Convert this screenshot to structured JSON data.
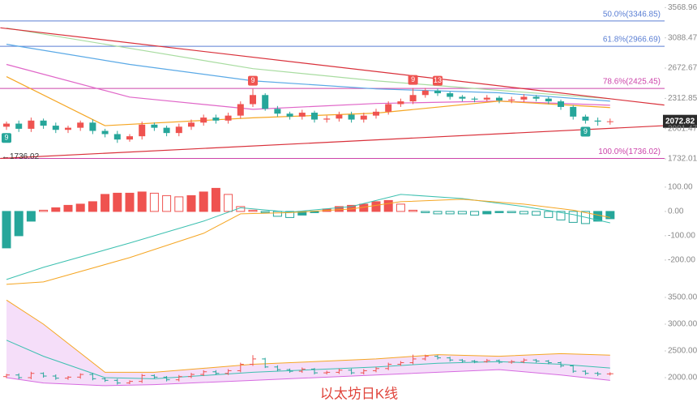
{
  "chart_data": [
    {
      "type": "candlestick",
      "log_scale": true,
      "ylim": [
        1706,
        3700
      ],
      "yticks": [
        3568.96,
        3088.47,
        2672.67,
        2312.85,
        2001.47,
        1732.01
      ],
      "up_color": "#ef5350",
      "down_color": "#26a69a",
      "open": [
        2020,
        2050,
        2000,
        2080,
        2030,
        1990,
        2010,
        2060,
        1980,
        1950,
        1900,
        1930,
        2040,
        2010,
        1960,
        2020,
        2060,
        2110,
        2080,
        2130,
        2250,
        2350,
        2200,
        2150,
        2120,
        2160,
        2090,
        2100,
        2140,
        2090,
        2130,
        2170,
        2250,
        2280,
        2350,
        2400,
        2370,
        2330,
        2310,
        2300,
        2320,
        2290,
        2300,
        2330,
        2310,
        2280,
        2220,
        2120,
        2080,
        2070
      ],
      "high": [
        2070,
        2080,
        2110,
        2100,
        2060,
        2030,
        2080,
        2090,
        2000,
        1980,
        1950,
        2070,
        2060,
        2030,
        2050,
        2090,
        2140,
        2140,
        2160,
        2280,
        2420,
        2370,
        2230,
        2170,
        2190,
        2180,
        2130,
        2170,
        2170,
        2160,
        2200,
        2280,
        2310,
        2430,
        2430,
        2420,
        2390,
        2350,
        2330,
        2350,
        2340,
        2330,
        2360,
        2350,
        2330,
        2300,
        2240,
        2140,
        2110,
        2100
      ],
      "low": [
        1990,
        1970,
        1970,
        2000,
        1960,
        1960,
        1980,
        1950,
        1920,
        1870,
        1880,
        1900,
        1980,
        1930,
        1930,
        1990,
        2030,
        2050,
        2050,
        2100,
        2220,
        2180,
        2120,
        2090,
        2090,
        2060,
        2060,
        2070,
        2060,
        2060,
        2100,
        2140,
        2220,
        2250,
        2320,
        2340,
        2300,
        2280,
        2270,
        2280,
        2260,
        2260,
        2270,
        2280,
        2250,
        2190,
        2090,
        2050,
        2030,
        2040
      ],
      "close": [
        2050,
        2000,
        2080,
        2030,
        1990,
        2010,
        2060,
        1980,
        1950,
        1900,
        1930,
        2040,
        2010,
        1960,
        2020,
        2060,
        2110,
        2080,
        2130,
        2250,
        2350,
        2200,
        2150,
        2120,
        2160,
        2090,
        2100,
        2140,
        2090,
        2130,
        2170,
        2250,
        2280,
        2350,
        2400,
        2370,
        2330,
        2310,
        2300,
        2320,
        2290,
        2300,
        2330,
        2310,
        2280,
        2220,
        2120,
        2080,
        2070,
        2073
      ],
      "levels": [
        {
          "value": 3346.85,
          "label": "50.0%(3346.85)",
          "color": "#5b7fd4"
        },
        {
          "value": 2966.69,
          "label": "61.8%(2966.69)",
          "color": "#5b7fd4"
        },
        {
          "value": 2425.45,
          "label": "78.6%(2425.45)",
          "color": "#cc44aa"
        },
        {
          "value": 1736.02,
          "label": "100.0%(1736.02)",
          "color": "#cc44aa"
        }
      ],
      "lines": [
        {
          "color": "#5aa9e6",
          "x": [
            0,
            10,
            20,
            30,
            40,
            49
          ],
          "values": [
            2995,
            2720,
            2515,
            2420,
            2375,
            2283
          ]
        },
        {
          "color": "#e066c8",
          "x": [
            0,
            10,
            20,
            30,
            40,
            49
          ],
          "values": [
            2720,
            2327,
            2195,
            2257,
            2283,
            2238
          ]
        },
        {
          "color": "#a8dca0",
          "x": [
            0,
            10,
            20,
            30,
            40,
            49
          ],
          "values": [
            3237,
            2938,
            2666,
            2515,
            2403,
            2309
          ]
        },
        {
          "color": "#f5a623",
          "x": [
            0,
            8,
            20,
            30,
            40,
            49
          ],
          "values": [
            2566,
            2030,
            2108,
            2155,
            2283,
            2213
          ]
        },
        {
          "color": "#d9303a",
          "x": [
            -0.5,
            53.4
          ],
          "values": [
            3240,
            2240
          ]
        },
        {
          "color": "#d9303a",
          "x": [
            -0.5,
            53.4
          ],
          "values": [
            1736,
            2030
          ]
        }
      ],
      "markers": [
        {
          "text": "9",
          "candle": 0,
          "color": "#26a69a"
        },
        {
          "text": "9",
          "candle": 20,
          "color": "#ef5350"
        },
        {
          "text": "9",
          "candle": 33,
          "color": "#ef5350"
        },
        {
          "text": "13",
          "candle": 35,
          "color": "#ef5350"
        },
        {
          "text": "9",
          "candle": 47,
          "color": "#26a69a"
        }
      ],
      "low_mark": "1736.02",
      "last_price": 2072.82
    },
    {
      "type": "macd",
      "ylim": [
        -297,
        193
      ],
      "yticks": [
        {
          "value": 100,
          "label": "100.00"
        },
        {
          "value": 0,
          "label": "0.00"
        },
        {
          "value": -100,
          "label": "-100.00"
        },
        {
          "value": -200,
          "label": "-200.00"
        }
      ],
      "histogram": [
        -150,
        -100,
        -40,
        5,
        15,
        25,
        30,
        40,
        70,
        75,
        75,
        80,
        75,
        65,
        60,
        65,
        80,
        95,
        70,
        20,
        5,
        -5,
        -20,
        -25,
        -15,
        -5,
        10,
        20,
        25,
        30,
        40,
        45,
        30,
        5,
        -5,
        -10,
        -10,
        -10,
        -15,
        -10,
        -5,
        -5,
        -10,
        -15,
        -25,
        -35,
        -45,
        -50,
        -40,
        -30
      ],
      "lines": [
        {
          "color": "#3cc0b0",
          "x": [
            0,
            3,
            10,
            16,
            19,
            23,
            28,
            32,
            37,
            42,
            46,
            49
          ],
          "values": [
            -280,
            -230,
            -130,
            -40,
            15,
            -3,
            20,
            70,
            53,
            20,
            -13,
            -47
          ]
        },
        {
          "color": "#f5a623",
          "x": [
            0,
            3,
            10,
            16,
            19,
            23,
            28,
            32,
            37,
            42,
            46,
            49
          ],
          "values": [
            -300,
            -290,
            -190,
            -90,
            -10,
            -5,
            10,
            40,
            50,
            30,
            5,
            -25
          ]
        }
      ]
    },
    {
      "type": "bollinger",
      "ylim": [
        1470,
        3682
      ],
      "yticks": [
        {
          "value": 3500,
          "label": "3500.00"
        },
        {
          "value": 3000,
          "label": "3000.00"
        },
        {
          "value": 2500,
          "label": "2500.00"
        },
        {
          "value": 2000,
          "label": "2000.00"
        }
      ],
      "x": [
        0,
        3,
        8,
        12,
        20,
        30,
        35,
        40,
        45,
        49
      ],
      "upper": [
        3450,
        3000,
        2100,
        2100,
        2250,
        2350,
        2430,
        2400,
        2450,
        2420
      ],
      "middle": [
        2700,
        2400,
        2000,
        1980,
        2100,
        2200,
        2270,
        2300,
        2250,
        2180
      ],
      "lower": [
        2000,
        1900,
        1850,
        1870,
        1950,
        2050,
        2100,
        2150,
        2050,
        1950
      ]
    }
  ],
  "watermark": "以太坊日K线"
}
